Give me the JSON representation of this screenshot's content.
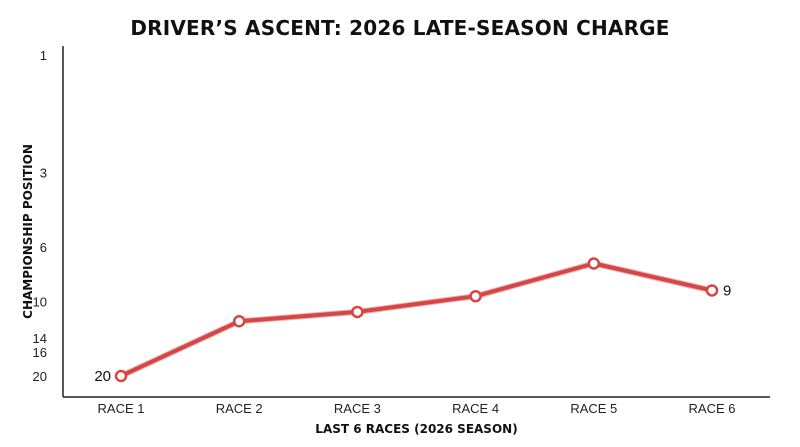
{
  "colors": {
    "line": "#d94545",
    "line_shadow": "#b32a2a",
    "axis": "#222222",
    "marker_fill": "#ffffff"
  },
  "chart_data": {
    "type": "line",
    "title": "DRIVER’S ASCENT: 2026 LATE-SEASON CHARGE",
    "xlabel": "LAST 6 RACES (2026 SEASON)",
    "ylabel": "CHAMPIONSHIP POSITION",
    "y_scale": "log",
    "y_inverted": true,
    "y_ticks": [
      1,
      3,
      6,
      10,
      14,
      16,
      20
    ],
    "y_tick_labels": [
      "1",
      "3",
      "6",
      "10",
      "14",
      "16",
      "20"
    ],
    "ylim": [
      1,
      20
    ],
    "grid": false,
    "categories": [
      "RACE 1",
      "RACE 2",
      "RACE 3",
      "RACE 4",
      "RACE 5",
      "RACE 6"
    ],
    "series": [
      {
        "values": [
          20,
          12,
          11,
          9.5,
          7,
          9
        ],
        "point_labels": [
          "20",
          "",
          "",
          "",
          "",
          "9"
        ]
      }
    ]
  }
}
